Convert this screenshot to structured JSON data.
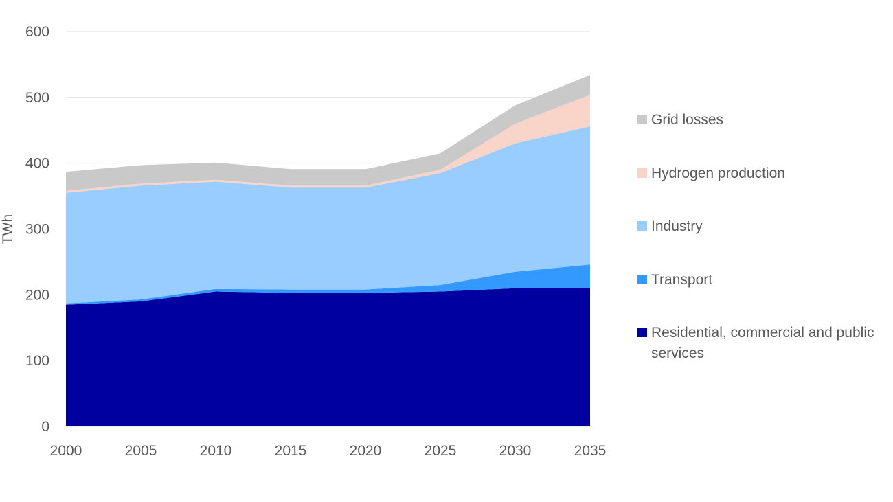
{
  "chart_data": {
    "type": "area",
    "stacked": true,
    "x": [
      2000,
      2005,
      2010,
      2015,
      2020,
      2025,
      2030,
      2035
    ],
    "ylabel": "TWh",
    "xlabel": "",
    "title": "",
    "ylim": [
      0,
      600
    ],
    "yticks": [
      0,
      100,
      200,
      300,
      400,
      500,
      600
    ],
    "grid": "horizontal",
    "legend": "right",
    "series": [
      {
        "name": "Residential, commercial and public services",
        "color": "#0000A0",
        "values": [
          185,
          190,
          205,
          203,
          203,
          205,
          210,
          210
        ]
      },
      {
        "name": "Transport",
        "color": "#3399FF",
        "values": [
          2,
          3,
          4,
          5,
          5,
          10,
          25,
          36
        ]
      },
      {
        "name": "Industry",
        "color": "#99CCFF",
        "values": [
          168,
          173,
          163,
          155,
          155,
          170,
          195,
          210
        ]
      },
      {
        "name": "Hydrogen production",
        "color": "#F8D5C8",
        "values": [
          3,
          3,
          3,
          3,
          3,
          5,
          30,
          48
        ]
      },
      {
        "name": "Grid losses",
        "color": "#C9C9C9",
        "values": [
          29,
          28,
          26,
          25,
          25,
          25,
          28,
          30
        ]
      }
    ]
  }
}
